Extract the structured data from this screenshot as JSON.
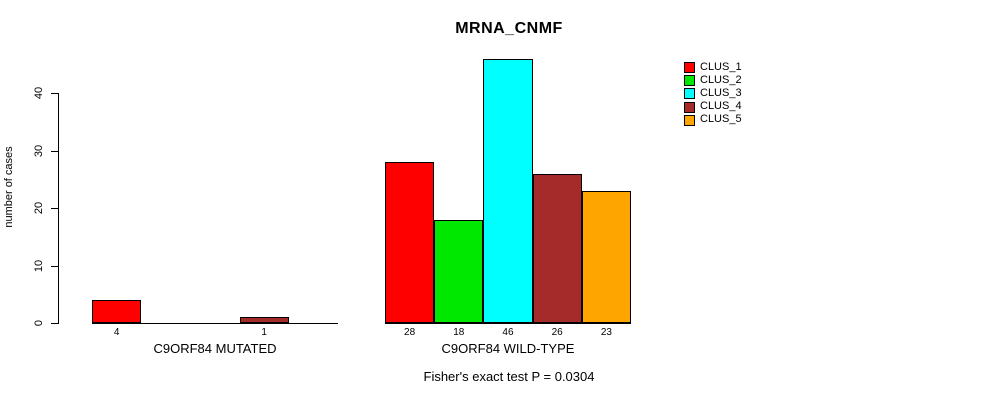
{
  "chart_data": {
    "type": "bar",
    "title": "MRNA_CNMF",
    "ylabel": "number of cases",
    "xlabel": "",
    "yticks": [
      0,
      10,
      20,
      30,
      40
    ],
    "ylim": [
      0,
      46
    ],
    "grid": false,
    "legend_position": "top-right",
    "series_names": [
      "CLUS_1",
      "CLUS_2",
      "CLUS_3",
      "CLUS_4",
      "CLUS_5"
    ],
    "series_colors": [
      "#FF0000",
      "#00E800",
      "#00FFFF",
      "#A52A2A",
      "#FFA500"
    ],
    "groups": [
      {
        "label": "C9ORF84 MUTATED",
        "values": [
          4,
          0,
          0,
          1,
          0
        ]
      },
      {
        "label": "C9ORF84 WILD-TYPE",
        "values": [
          28,
          18,
          46,
          26,
          23
        ]
      }
    ],
    "bar_value_labels_shown": [
      "4",
      "1",
      "28",
      "18",
      "46",
      "26",
      "23"
    ],
    "annotation": "Fisher's exact test P = 0.0304"
  },
  "legend": {
    "items": [
      {
        "label": "CLUS_1",
        "color": "#FF0000"
      },
      {
        "label": "CLUS_2",
        "color": "#00E800"
      },
      {
        "label": "CLUS_3",
        "color": "#00FFFF"
      },
      {
        "label": "CLUS_4",
        "color": "#A52A2A"
      },
      {
        "label": "CLUS_5",
        "color": "#FFA500"
      }
    ]
  }
}
